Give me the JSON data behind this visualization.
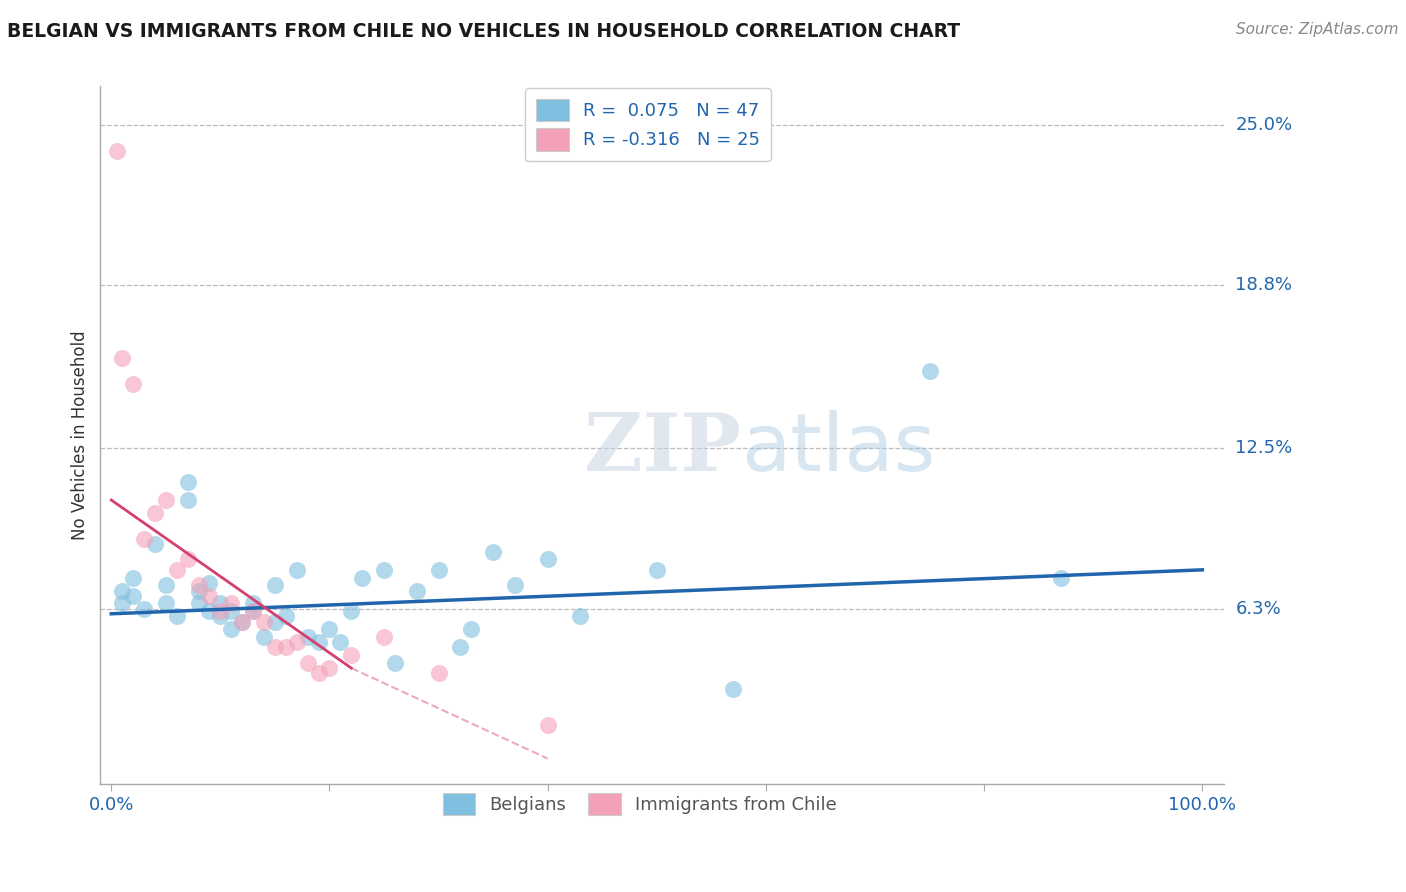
{
  "title": "BELGIAN VS IMMIGRANTS FROM CHILE NO VEHICLES IN HOUSEHOLD CORRELATION CHART",
  "source": "Source: ZipAtlas.com",
  "ylabel": "No Vehicles in Household",
  "xlim": [
    0,
    100
  ],
  "ylim": [
    0,
    26.5
  ],
  "ytick_labels": [
    "6.3%",
    "12.5%",
    "18.8%",
    "25.0%"
  ],
  "ytick_values": [
    6.3,
    12.5,
    18.8,
    25.0
  ],
  "blue_color": "#7fbfdf",
  "pink_color": "#f4a0b8",
  "blue_line_color": "#2166ac",
  "pink_line_color": "#d44070",
  "grid_color": "#bbbbbb",
  "watermark_zip": "ZIP",
  "watermark_atlas": "atlas",
  "legend_R_blue": "R =  0.075",
  "legend_N_blue": "N = 47",
  "legend_R_pink": "R = -0.316",
  "legend_N_pink": "N = 25",
  "blue_scatter_x": [
    1,
    1,
    2,
    2,
    3,
    4,
    5,
    5,
    6,
    7,
    7,
    8,
    8,
    9,
    9,
    10,
    10,
    11,
    11,
    12,
    13,
    13,
    14,
    15,
    15,
    16,
    17,
    18,
    19,
    20,
    21,
    22,
    23,
    25,
    26,
    28,
    30,
    32,
    33,
    35,
    37,
    40,
    43,
    50,
    57,
    75,
    87
  ],
  "blue_scatter_y": [
    6.5,
    7.0,
    6.8,
    7.5,
    6.3,
    8.8,
    6.5,
    7.2,
    6.0,
    10.5,
    11.2,
    6.5,
    7.0,
    6.2,
    7.3,
    6.0,
    6.5,
    6.2,
    5.5,
    5.8,
    6.2,
    6.5,
    5.2,
    5.8,
    7.2,
    6.0,
    7.8,
    5.2,
    5.0,
    5.5,
    5.0,
    6.2,
    7.5,
    7.8,
    4.2,
    7.0,
    7.8,
    4.8,
    5.5,
    8.5,
    7.2,
    8.2,
    6.0,
    7.8,
    3.2,
    15.5,
    7.5
  ],
  "pink_scatter_x": [
    0.5,
    1,
    2,
    3,
    4,
    5,
    6,
    7,
    8,
    9,
    10,
    11,
    12,
    13,
    14,
    15,
    16,
    17,
    18,
    19,
    20,
    22,
    25,
    30,
    40
  ],
  "pink_scatter_y": [
    24.0,
    16.0,
    15.0,
    9.0,
    10.0,
    10.5,
    7.8,
    8.2,
    7.2,
    6.8,
    6.2,
    6.5,
    5.8,
    6.2,
    5.8,
    4.8,
    4.8,
    5.0,
    4.2,
    3.8,
    4.0,
    4.5,
    5.2,
    3.8,
    1.8
  ],
  "blue_line_x0": 0,
  "blue_line_x1": 100,
  "blue_line_y0": 6.1,
  "blue_line_y1": 7.8,
  "pink_line_solid_x0": 0,
  "pink_line_solid_x1": 22,
  "pink_line_solid_y0": 10.5,
  "pink_line_solid_y1": 4.0,
  "pink_line_dash_x0": 22,
  "pink_line_dash_x1": 40,
  "pink_line_dash_y0": 4.0,
  "pink_line_dash_y1": 0.5
}
